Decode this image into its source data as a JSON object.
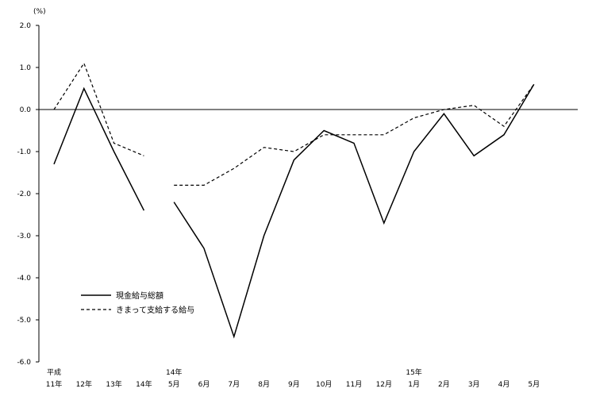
{
  "chart_data": {
    "type": "line",
    "unit_label": "(%)",
    "ylim": [
      -6.0,
      2.0
    ],
    "y_ticks": [
      "2.0",
      "1.0",
      "0.0",
      "-1.0",
      "-2.0",
      "-3.0",
      "-4.0",
      "-5.0",
      "-6.0"
    ],
    "categories": [
      {
        "top": "平成",
        "bottom": "11年"
      },
      {
        "top": "",
        "bottom": "12年"
      },
      {
        "top": "",
        "bottom": "13年"
      },
      {
        "top": "",
        "bottom": "14年"
      },
      {
        "top": "14年",
        "bottom": "5月"
      },
      {
        "top": "",
        "bottom": "6月"
      },
      {
        "top": "",
        "bottom": "7月"
      },
      {
        "top": "",
        "bottom": "8月"
      },
      {
        "top": "",
        "bottom": "9月"
      },
      {
        "top": "",
        "bottom": "10月"
      },
      {
        "top": "",
        "bottom": "11月"
      },
      {
        "top": "",
        "bottom": "12月"
      },
      {
        "top": "15年",
        "bottom": "1月"
      },
      {
        "top": "",
        "bottom": "2月"
      },
      {
        "top": "",
        "bottom": "3月"
      },
      {
        "top": "",
        "bottom": "4月"
      },
      {
        "top": "",
        "bottom": "5月"
      }
    ],
    "series": [
      {
        "name": "現金給与総額",
        "style": "solid",
        "values": [
          -1.3,
          0.5,
          -1.0,
          -2.4,
          -2.2,
          -3.3,
          -5.4,
          -3.0,
          -1.2,
          -0.5,
          -0.8,
          -2.7,
          -1.0,
          -0.1,
          -1.1,
          -0.6,
          0.6
        ]
      },
      {
        "name": "きまって支給する給与",
        "style": "dashed",
        "values": [
          0.0,
          1.1,
          -0.8,
          -1.1,
          -1.8,
          -1.8,
          -1.4,
          -0.9,
          -1.0,
          -0.6,
          -0.6,
          -0.6,
          -0.2,
          0.0,
          0.1,
          -0.4,
          0.6
        ]
      }
    ],
    "segments": [
      [
        0,
        3
      ],
      [
        4,
        16
      ]
    ],
    "grid": false,
    "legend_position": "bottom-left",
    "colors": {
      "line": "#000000",
      "axis": "#000000"
    }
  }
}
